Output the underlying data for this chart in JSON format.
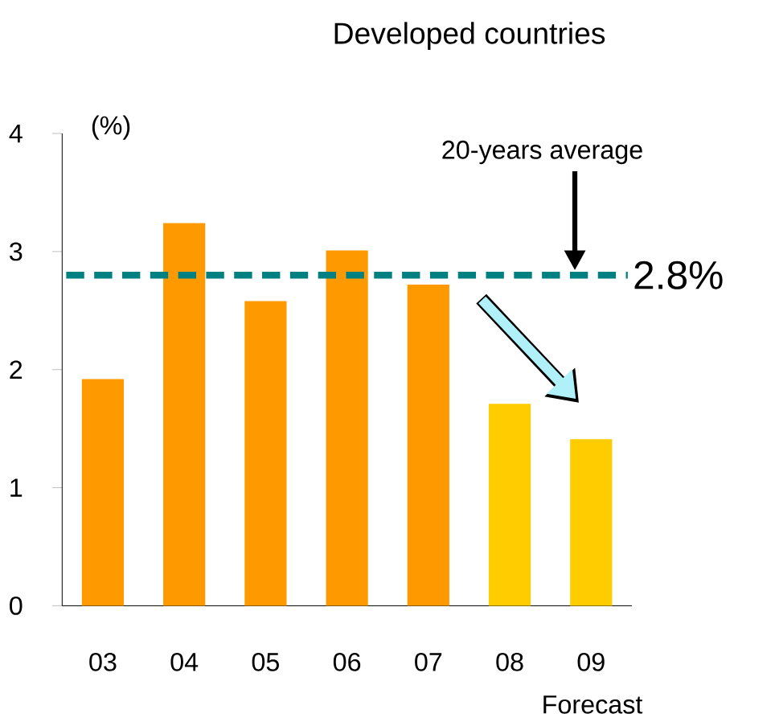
{
  "chart_data": {
    "type": "bar",
    "title": "Developed countries",
    "categories": [
      "03",
      "04",
      "05",
      "06",
      "07",
      "08",
      "09"
    ],
    "values": [
      1.92,
      3.24,
      2.58,
      3.01,
      2.72,
      1.71,
      1.41
    ],
    "colors": [
      "#ff9900",
      "#ff9900",
      "#ff9900",
      "#ff9900",
      "#ff9900",
      "#ffcc00",
      "#ffcc00"
    ],
    "ylim": [
      0,
      4
    ],
    "yticks": [
      0,
      1,
      2,
      3,
      4
    ],
    "ref_lines": [
      {
        "axis": "y",
        "value": 2.8,
        "label": "2.8%",
        "color": "#008080",
        "line_style": "dashed"
      }
    ],
    "annotations": [
      "(%)",
      "20-years average",
      "Forecast"
    ]
  }
}
